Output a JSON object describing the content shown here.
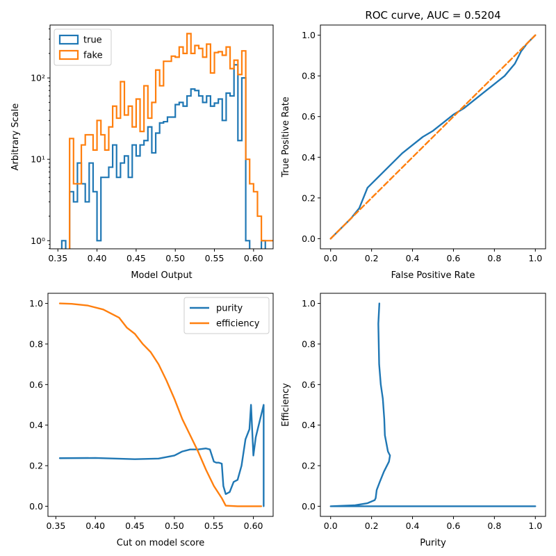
{
  "colors": {
    "blue": "#1f77b4",
    "orange": "#ff7f0e"
  },
  "chart_data": [
    {
      "id": "hist",
      "type": "step-histogram",
      "title": "",
      "xlabel": "Model Output",
      "ylabel": "Arbitrary Scale",
      "xlim": [
        0.34,
        0.625
      ],
      "ylim_log10": [
        -0.1,
        2.65
      ],
      "yscale": "log",
      "xticks": [
        0.35,
        0.4,
        0.45,
        0.5,
        0.55,
        0.6
      ],
      "xtick_labels": [
        "0.35",
        "0.40",
        "0.45",
        "0.50",
        "0.55",
        "0.60"
      ],
      "yticks": [
        1,
        10,
        100
      ],
      "ytick_labels": [
        "10⁰",
        "10¹",
        "10²"
      ],
      "legend": {
        "placement": "top-left",
        "entries": [
          "true",
          "fake"
        ]
      },
      "bin_edges_start": 0.355,
      "bin_width": 0.005,
      "series": [
        {
          "name": "true",
          "color": "#1f77b4",
          "values": [
            1,
            0,
            4,
            3,
            9,
            5,
            3,
            9,
            4,
            1,
            6,
            6,
            8,
            15,
            6,
            9,
            11,
            6,
            15,
            11,
            15,
            17,
            25,
            12,
            21,
            28,
            29,
            33,
            33,
            47,
            50,
            45,
            60,
            73,
            70,
            60,
            50,
            60,
            45,
            49,
            55,
            30,
            65,
            60,
            145,
            17,
            100,
            1,
            0,
            0,
            0,
            1,
            0,
            0,
            0,
            0,
            0
          ]
        },
        {
          "name": "fake",
          "color": "#ff7f0e",
          "values": [
            0,
            0,
            18,
            5,
            5,
            15,
            20,
            20,
            13,
            30,
            20,
            13,
            25,
            45,
            32,
            90,
            35,
            45,
            25,
            55,
            22,
            80,
            32,
            50,
            125,
            80,
            160,
            160,
            185,
            180,
            240,
            200,
            350,
            200,
            250,
            230,
            180,
            260,
            115,
            205,
            210,
            190,
            240,
            130,
            165,
            110,
            215,
            10,
            5,
            4,
            2,
            1,
            1,
            1,
            1,
            1,
            1
          ]
        }
      ]
    },
    {
      "id": "roc",
      "type": "line",
      "title": "ROC curve, AUC = 0.5204",
      "xlabel": "False Positive Rate",
      "ylabel": "True Positive Rate",
      "xlim": [
        -0.05,
        1.05
      ],
      "ylim": [
        -0.05,
        1.05
      ],
      "xticks": [
        0.0,
        0.2,
        0.4,
        0.6,
        0.8,
        1.0
      ],
      "xtick_labels": [
        "0.0",
        "0.2",
        "0.4",
        "0.6",
        "0.8",
        "1.0"
      ],
      "yticks": [
        0.0,
        0.2,
        0.4,
        0.6,
        0.8,
        1.0
      ],
      "ytick_labels": [
        "0.0",
        "0.2",
        "0.4",
        "0.6",
        "0.8",
        "1.0"
      ],
      "series": [
        {
          "color": "#1f77b4",
          "style": "solid",
          "x": [
            0,
            0.05,
            0.1,
            0.14,
            0.16,
            0.18,
            0.2,
            0.25,
            0.3,
            0.35,
            0.4,
            0.45,
            0.5,
            0.55,
            0.6,
            0.65,
            0.7,
            0.75,
            0.8,
            0.85,
            0.9,
            0.93,
            0.96,
            1.0
          ],
          "y": [
            0,
            0.05,
            0.1,
            0.15,
            0.2,
            0.25,
            0.27,
            0.32,
            0.37,
            0.42,
            0.46,
            0.5,
            0.53,
            0.57,
            0.61,
            0.64,
            0.68,
            0.72,
            0.76,
            0.8,
            0.86,
            0.92,
            0.96,
            1.0
          ]
        },
        {
          "color": "#ff7f0e",
          "style": "dashed",
          "x": [
            0,
            1
          ],
          "y": [
            0,
            1
          ]
        }
      ]
    },
    {
      "id": "cut",
      "type": "line",
      "title": "",
      "xlabel": "Cut on model score",
      "ylabel": "",
      "xlim": [
        0.34,
        0.625
      ],
      "ylim": [
        -0.05,
        1.05
      ],
      "xticks": [
        0.35,
        0.4,
        0.45,
        0.5,
        0.55,
        0.6
      ],
      "xtick_labels": [
        "0.35",
        "0.40",
        "0.45",
        "0.50",
        "0.55",
        "0.60"
      ],
      "yticks": [
        0.0,
        0.2,
        0.4,
        0.6,
        0.8,
        1.0
      ],
      "ytick_labels": [
        "0.0",
        "0.2",
        "0.4",
        "0.6",
        "0.8",
        "1.0"
      ],
      "legend": {
        "placement": "top-right",
        "entries": [
          "purity",
          "efficiency"
        ]
      },
      "series": [
        {
          "name": "purity",
          "color": "#1f77b4",
          "x": [
            0.355,
            0.4,
            0.45,
            0.48,
            0.5,
            0.51,
            0.52,
            0.53,
            0.54,
            0.545,
            0.55,
            0.553,
            0.556,
            0.56,
            0.562,
            0.565,
            0.57,
            0.575,
            0.58,
            0.585,
            0.59,
            0.595,
            0.597,
            0.6,
            0.603,
            0.613,
            0.613
          ],
          "y": [
            0.237,
            0.238,
            0.232,
            0.235,
            0.25,
            0.27,
            0.28,
            0.28,
            0.285,
            0.28,
            0.22,
            0.215,
            0.215,
            0.21,
            0.1,
            0.06,
            0.07,
            0.12,
            0.13,
            0.2,
            0.33,
            0.38,
            0.5,
            0.25,
            0.34,
            0.5,
            0.0
          ]
        },
        {
          "name": "efficiency",
          "color": "#ff7f0e",
          "x": [
            0.355,
            0.37,
            0.39,
            0.41,
            0.43,
            0.44,
            0.45,
            0.46,
            0.47,
            0.48,
            0.49,
            0.5,
            0.51,
            0.52,
            0.53,
            0.54,
            0.55,
            0.56,
            0.565,
            0.58,
            0.61
          ],
          "y": [
            1.0,
            0.998,
            0.99,
            0.97,
            0.93,
            0.88,
            0.85,
            0.8,
            0.76,
            0.7,
            0.62,
            0.53,
            0.43,
            0.35,
            0.27,
            0.18,
            0.1,
            0.04,
            0.003,
            0.0,
            0.0
          ]
        }
      ]
    },
    {
      "id": "pe",
      "type": "line",
      "title": "",
      "xlabel": "Purity",
      "ylabel": "Efficiency",
      "xlim": [
        -0.05,
        1.05
      ],
      "ylim": [
        -0.05,
        1.05
      ],
      "xticks": [
        0.0,
        0.2,
        0.4,
        0.6,
        0.8,
        1.0
      ],
      "xtick_labels": [
        "0.0",
        "0.2",
        "0.4",
        "0.6",
        "0.8",
        "1.0"
      ],
      "yticks": [
        0.0,
        0.2,
        0.4,
        0.6,
        0.8,
        1.0
      ],
      "ytick_labels": [
        "0.0",
        "0.2",
        "0.4",
        "0.6",
        "0.8",
        "1.0"
      ],
      "series": [
        {
          "color": "#1f77b4",
          "x": [
            0.238,
            0.233,
            0.235,
            0.237,
            0.245,
            0.255,
            0.262,
            0.265,
            0.28,
            0.29,
            0.285,
            0.26,
            0.24,
            0.225,
            0.22,
            0.215,
            0.18,
            0.12,
            0.0,
            0.5,
            1.0
          ],
          "y": [
            1.0,
            0.9,
            0.8,
            0.7,
            0.6,
            0.53,
            0.43,
            0.35,
            0.27,
            0.25,
            0.22,
            0.17,
            0.12,
            0.08,
            0.04,
            0.03,
            0.015,
            0.005,
            0.0,
            0.0,
            0.0
          ]
        }
      ]
    }
  ]
}
